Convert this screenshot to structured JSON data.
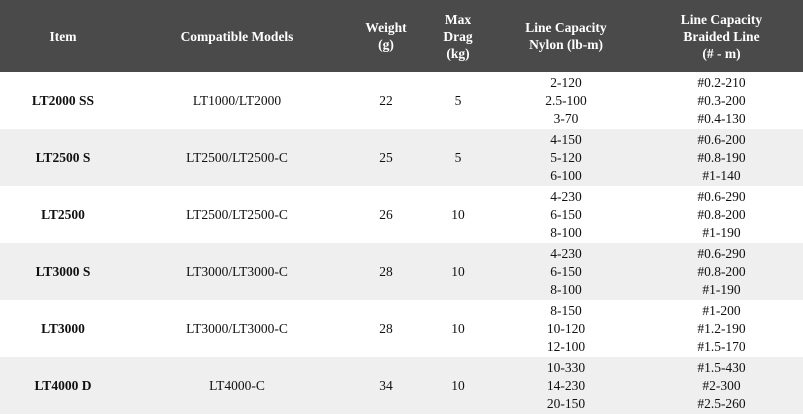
{
  "headers": {
    "item": "Item",
    "models": "Compatible Models",
    "weight": [
      "Weight",
      "(g)"
    ],
    "drag": [
      "Max",
      "Drag",
      "(kg)"
    ],
    "nylon": [
      "Line Capacity",
      "Nylon (lb-m)"
    ],
    "braid": [
      "Line Capacity",
      "Braided Line",
      "(# - m)"
    ]
  },
  "rows": [
    {
      "item": "LT2000 SS",
      "models": "LT1000/LT2000",
      "weight": "22",
      "drag": "5",
      "nylon": [
        "2-120",
        "2.5-100",
        "3-70"
      ],
      "braid": [
        "#0.2-210",
        "#0.3-200",
        "#0.4-130"
      ]
    },
    {
      "item": "LT2500 S",
      "models": "LT2500/LT2500-C",
      "weight": "25",
      "drag": "5",
      "nylon": [
        "4-150",
        "5-120",
        "6-100"
      ],
      "braid": [
        "#0.6-200",
        "#0.8-190",
        "#1-140"
      ]
    },
    {
      "item": "LT2500",
      "models": "LT2500/LT2500-C",
      "weight": "26",
      "drag": "10",
      "nylon": [
        "4-230",
        "6-150",
        "8-100"
      ],
      "braid": [
        "#0.6-290",
        "#0.8-200",
        "#1-190"
      ]
    },
    {
      "item": "LT3000 S",
      "models": "LT3000/LT3000-C",
      "weight": "28",
      "drag": "10",
      "nylon": [
        "4-230",
        "6-150",
        "8-100"
      ],
      "braid": [
        "#0.6-290",
        "#0.8-200",
        "#1-190"
      ]
    },
    {
      "item": "LT3000",
      "models": "LT3000/LT3000-C",
      "weight": "28",
      "drag": "10",
      "nylon": [
        "8-150",
        "10-120",
        "12-100"
      ],
      "braid": [
        "#1-200",
        "#1.2-190",
        "#1.5-170"
      ]
    },
    {
      "item": "LT4000 D",
      "models": "LT4000-C",
      "weight": "34",
      "drag": "10",
      "nylon": [
        "10-330",
        "14-230",
        "20-150"
      ],
      "braid": [
        "#1.5-430",
        "#2-300",
        "#2.5-260"
      ]
    }
  ]
}
